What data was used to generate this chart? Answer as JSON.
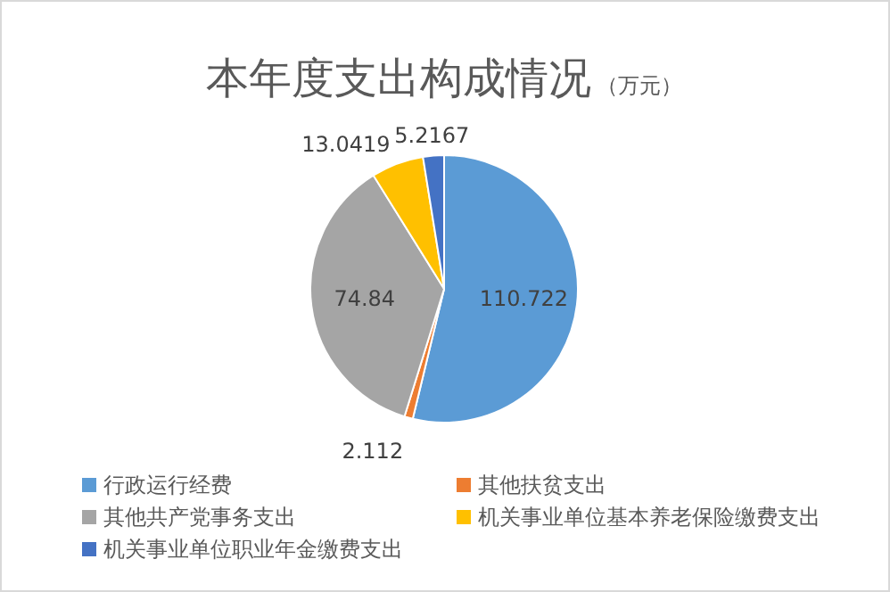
{
  "chart_data": {
    "type": "pie",
    "title": "本年度支出构成情况",
    "subtitle": "（万元）",
    "categories": [
      "行政运行经费",
      "其他扶贫支出",
      "其他共产党事务支出",
      "机关事业单位基本养老保险缴费支出",
      "机关事业单位职业年金缴费支出"
    ],
    "values": [
      110.722,
      2.112,
      74.84,
      13.0419,
      5.2167
    ],
    "colors": [
      "#5b9bd5",
      "#ed7d31",
      "#a5a5a5",
      "#ffc000",
      "#4472c4"
    ],
    "data_labels": true,
    "legend": "bottom"
  }
}
